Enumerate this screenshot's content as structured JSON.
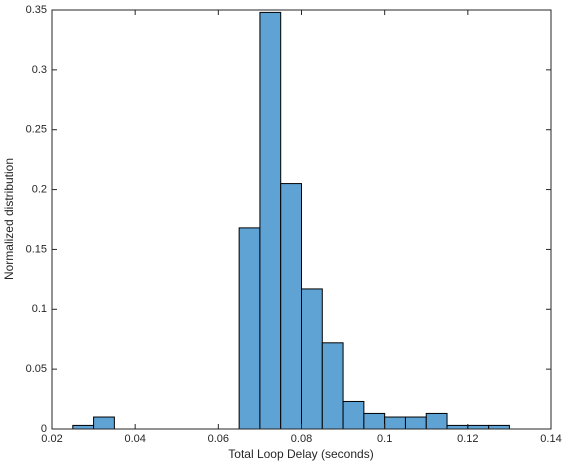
{
  "chart_data": {
    "type": "histogram",
    "xlabel": "Total Loop Delay (seconds)",
    "ylabel": "Normalized distribution",
    "bins": [
      0.025,
      0.03,
      0.035,
      0.04,
      0.045,
      0.05,
      0.055,
      0.06,
      0.065,
      0.07,
      0.075,
      0.08,
      0.085,
      0.09,
      0.095,
      0.1,
      0.105,
      0.11,
      0.115,
      0.12,
      0.125,
      0.13
    ],
    "values": [
      0.003,
      0.01,
      0,
      0,
      0,
      0,
      0,
      0,
      0.168,
      0.348,
      0.205,
      0.117,
      0.072,
      0.023,
      0.013,
      0.01,
      0.01,
      0.013,
      0.003,
      0.003,
      0.003
    ],
    "color": "#5fa3d5",
    "xlim": [
      0.02,
      0.14
    ],
    "xticks": [
      0.02,
      0.04,
      0.06,
      0.08,
      0.1,
      0.12,
      0.14
    ],
    "ylim": [
      0,
      0.35
    ],
    "yticks": [
      0,
      0.05,
      0.1,
      0.15,
      0.2,
      0.25,
      0.3,
      0.35
    ]
  }
}
